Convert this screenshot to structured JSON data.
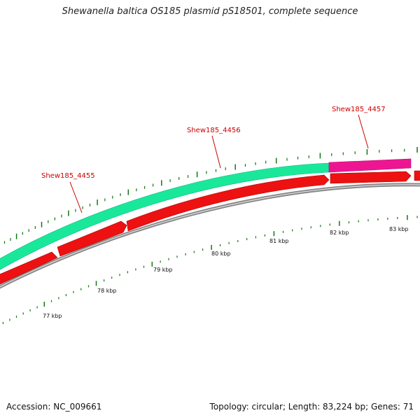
{
  "title": "Shewanella baltica OS185 plasmid pS18501, complete sequence",
  "footer": {
    "accession": "Accession: NC_009661",
    "stats": "Topology: circular; Length: 83,224 bp; Genes: 71"
  },
  "colors": {
    "cds_feature": "#19e89b",
    "rna_feature": "#ee1593",
    "gene_arrow": "#ee1111",
    "backbone": "#888888",
    "ticks": "#117711",
    "label": "#cc0000"
  },
  "gene_labels": [
    "Shew185_4455",
    "Shew185_4456",
    "Shew185_4457"
  ],
  "kbp_ticks": [
    "77 kbp",
    "78 kbp",
    "79 kbp",
    "80 kbp",
    "81 kbp",
    "82 kbp",
    "83 kbp"
  ]
}
